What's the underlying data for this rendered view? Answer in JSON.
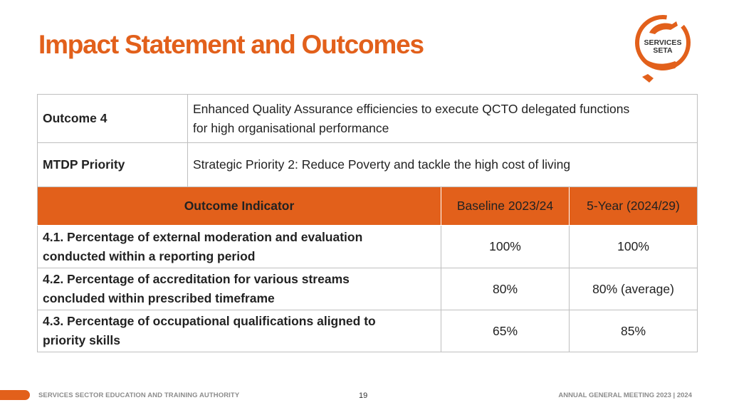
{
  "title": "Impact Statement and Outcomes",
  "logo": {
    "line1": "SERVICES",
    "line2": "SETA"
  },
  "outcome": {
    "label": "Outcome 4",
    "line1": "Enhanced Quality Assurance efficiencies to execute QCTO delegated functions",
    "line2": "for high organisational performance"
  },
  "priority": {
    "label": "MTDP Priority",
    "value": "Strategic Priority 2: Reduce Poverty and tackle the high cost of living"
  },
  "header": {
    "indicator": "Outcome Indicator",
    "baseline": "Baseline 2023/24",
    "target": "5-Year (2024/29)"
  },
  "rows": [
    {
      "line1": "4.1. Percentage of external moderation and evaluation",
      "line2": "conducted within a reporting period",
      "baseline": "100%",
      "target": "100%"
    },
    {
      "line1": "4.2. Percentage of accreditation for various streams",
      "line2": "concluded within prescribed timeframe",
      "baseline": "80%",
      "target": "80% (average)"
    },
    {
      "line1": "4.3. Percentage of occupational qualifications aligned to",
      "line2": "priority skills",
      "baseline": "65%",
      "target": "85%"
    }
  ],
  "footer": {
    "left": "SERVICES SECTOR EDUCATION AND TRAINING AUTHORITY",
    "page": "19",
    "right": "ANNUAL GENERAL MEETING 2023 | 2024"
  },
  "colors": {
    "accent": "#e2601b",
    "border": "#bfbfbf",
    "footer_text": "#8c8c8c"
  }
}
